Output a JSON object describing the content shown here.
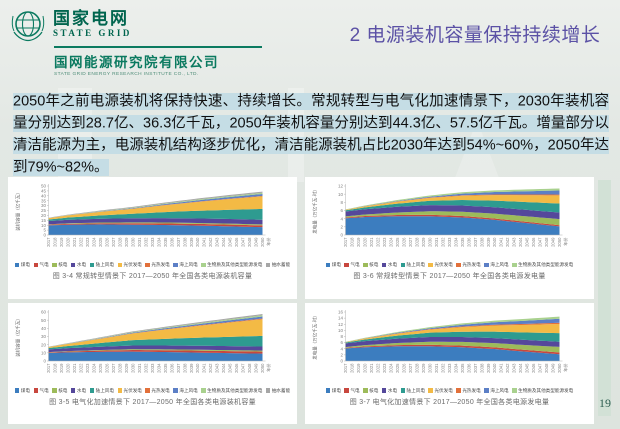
{
  "header": {
    "logo_cn": "国家电网",
    "logo_en": "STATE GRID",
    "org_cn": "国网能源研究院有限公司",
    "org_en": "STATE GRID ENERGY RESEARCH INSTITUTE CO., LTD."
  },
  "slide": {
    "title": "2 电源装机容量保持持续增长",
    "paragraph": "2050年之前电源装机将保持快速、持续增长。常规转型与电气化加速情景下，2030年装机容量分别达到28.7亿、36.3亿千瓦，2050年装机容量分别达到44.3亿、57.5亿千瓦。增量部分以清洁能源为主，电源装机结构逐步优化，清洁能源装机占比2030年达到54%~60%，2050年达到79%~82%。",
    "page_number": "19"
  },
  "colors": {
    "title": "#5b51a5",
    "highlight": "#c5dde5",
    "logo_green": "#0b7a60",
    "coal": "#3c7dbf",
    "gas": "#c8473e",
    "nuclear": "#9dbb5a",
    "hydro": "#55489b",
    "onshore_wind": "#2e9b90",
    "solar_pv": "#f3ba45",
    "solar_thermal": "#e2703a",
    "offshore_wind": "#5c7fc6",
    "biomass_other": "#a9d18e",
    "pumped_storage": "#a6a6a6"
  },
  "chart_data": {
    "type": "area",
    "stacked": true,
    "grid": false,
    "legend_position": "bottom",
    "x_label": "年份",
    "years": [
      2017,
      2018,
      2019,
      2020,
      2021,
      2022,
      2023,
      2024,
      2025,
      2026,
      2027,
      2028,
      2029,
      2030,
      2031,
      2032,
      2033,
      2034,
      2035,
      2036,
      2037,
      2038,
      2039,
      2040,
      2041,
      2042,
      2043,
      2044,
      2045,
      2046,
      2047,
      2048,
      2049,
      2050
    ],
    "sample_years": [
      2017,
      2020,
      2025,
      2030,
      2035,
      2040,
      2045,
      2050
    ],
    "charts": [
      {
        "caption": "图 3-4  常规转型情景下 2017—2050 年全国各类电源装机容量",
        "y_title": "装机容量（亿千瓦）",
        "ylim": [
          0,
          50
        ],
        "ystep": 5,
        "series": [
          {
            "name": "煤电",
            "color": "#3c7dbf",
            "values": [
              9.8,
              10.5,
              10.8,
              10.5,
              10.2,
              9.6,
              8.8,
              8.0
            ]
          },
          {
            "name": "气电",
            "color": "#c8473e",
            "values": [
              0.7,
              0.9,
              1.2,
              1.5,
              1.6,
              1.7,
              1.8,
              1.8
            ]
          },
          {
            "name": "核电",
            "color": "#9dbb5a",
            "values": [
              0.36,
              0.5,
              0.7,
              0.9,
              1.0,
              1.0,
              1.0,
              1.0
            ]
          },
          {
            "name": "水电",
            "color": "#55489b",
            "values": [
              3.4,
              3.6,
              3.9,
              4.2,
              4.4,
              4.6,
              4.7,
              4.8
            ]
          },
          {
            "name": "陆上风电",
            "color": "#2e9b90",
            "values": [
              1.6,
              2.3,
              3.4,
              4.6,
              6.2,
              7.8,
              9.4,
              11.0
            ]
          },
          {
            "name": "光伏发电",
            "color": "#f3ba45",
            "values": [
              1.3,
              2.2,
              3.6,
              5.0,
              7.0,
              9.0,
              11.0,
              12.8
            ]
          },
          {
            "name": "光热发电",
            "color": "#e2703a",
            "values": [
              0.02,
              0.05,
              0.12,
              0.2,
              0.28,
              0.35,
              0.42,
              0.5
            ]
          },
          {
            "name": "海上风电",
            "color": "#5c7fc6",
            "values": [
              0.02,
              0.1,
              0.3,
              0.5,
              0.9,
              1.3,
              1.7,
              2.0
            ]
          },
          {
            "name": "生物质及其他类型能源发电",
            "color": "#a9d18e",
            "values": [
              0.15,
              0.25,
              0.38,
              0.5,
              0.68,
              0.85,
              1.0,
              1.2
            ]
          },
          {
            "name": "抽水蓄能",
            "color": "#a6a6a6",
            "values": [
              0.3,
              0.4,
              0.6,
              0.8,
              0.9,
              1.0,
              1.1,
              1.2
            ]
          }
        ]
      },
      {
        "caption": "图 3-6  常规转型情景下 2017—2050 年全国各类电源发电量",
        "y_title": "发电量（万亿千瓦·时）",
        "ylim": [
          0,
          12
        ],
        "ystep": 2,
        "series": [
          {
            "name": "煤电",
            "color": "#3c7dbf",
            "values": [
              4.1,
              4.4,
              4.6,
              4.6,
              4.3,
              3.7,
              2.9,
              2.1
            ]
          },
          {
            "name": "气电",
            "color": "#c8473e",
            "values": [
              0.2,
              0.25,
              0.3,
              0.35,
              0.35,
              0.33,
              0.31,
              0.3
            ]
          },
          {
            "name": "核电",
            "color": "#9dbb5a",
            "values": [
              0.25,
              0.37,
              0.62,
              0.88,
              1.05,
              1.2,
              1.35,
              1.5
            ]
          },
          {
            "name": "水电",
            "color": "#55489b",
            "values": [
              1.2,
              1.28,
              1.4,
              1.5,
              1.53,
              1.56,
              1.58,
              1.6
            ]
          },
          {
            "name": "陆上风电",
            "color": "#2e9b90",
            "values": [
              0.3,
              0.47,
              0.76,
              1.05,
              1.34,
              1.63,
              1.92,
              2.2
            ]
          },
          {
            "name": "光伏发电",
            "color": "#f3ba45",
            "values": [
              0.12,
              0.25,
              0.48,
              0.7,
              1.03,
              1.35,
              1.68,
              2.0
            ]
          },
          {
            "name": "光热发电",
            "color": "#e2703a",
            "values": [
              0.01,
              0.03,
              0.06,
              0.1,
              0.13,
              0.15,
              0.18,
              0.2
            ]
          },
          {
            "name": "海上风电",
            "color": "#5c7fc6",
            "values": [
              0.01,
              0.05,
              0.12,
              0.2,
              0.4,
              0.6,
              0.8,
              1.0
            ]
          },
          {
            "name": "生物质及其他类型能源发电",
            "color": "#a9d18e",
            "values": [
              0.08,
              0.14,
              0.22,
              0.3,
              0.35,
              0.4,
              0.45,
              0.5
            ]
          }
        ]
      },
      {
        "caption": "图 3-5  电气化加速情景下 2017—2050 年全国各类电源装机容量",
        "y_title": "装机容量（亿千瓦）",
        "ylim": [
          0,
          60
        ],
        "ystep": 10,
        "series": [
          {
            "name": "煤电",
            "color": "#3c7dbf",
            "values": [
              9.8,
              10.6,
              11.2,
              11.5,
              11.0,
              10.3,
              9.6,
              9.0
            ]
          },
          {
            "name": "气电",
            "color": "#c8473e",
            "values": [
              0.7,
              1.0,
              1.5,
              2.0,
              2.2,
              2.4,
              2.5,
              2.5
            ]
          },
          {
            "name": "核电",
            "color": "#9dbb5a",
            "values": [
              0.36,
              0.5,
              0.75,
              1.0,
              1.1,
              1.2,
              1.2,
              1.2
            ]
          },
          {
            "name": "水电",
            "color": "#55489b",
            "values": [
              3.4,
              3.6,
              4.0,
              4.4,
              4.6,
              4.8,
              4.9,
              5.0
            ]
          },
          {
            "name": "陆上风电",
            "color": "#2e9b90",
            "values": [
              1.6,
              2.6,
              4.6,
              6.6,
              8.2,
              9.8,
              11.4,
              13.0
            ]
          },
          {
            "name": "光伏发电",
            "color": "#f3ba45",
            "values": [
              1.3,
              2.6,
              5.2,
              8.2,
              11.3,
              14.4,
              17.5,
              20.5
            ]
          },
          {
            "name": "光热发电",
            "color": "#e2703a",
            "values": [
              0.02,
              0.07,
              0.18,
              0.3,
              0.43,
              0.55,
              0.68,
              0.8
            ]
          },
          {
            "name": "海上风电",
            "color": "#5c7fc6",
            "values": [
              0.02,
              0.15,
              0.45,
              0.8,
              1.2,
              1.6,
              2.1,
              2.5
            ]
          },
          {
            "name": "生物质及其他类型能源发电",
            "color": "#a9d18e",
            "values": [
              0.15,
              0.3,
              0.45,
              0.6,
              0.83,
              1.05,
              1.28,
              1.5
            ]
          },
          {
            "name": "抽水蓄能",
            "color": "#a6a6a6",
            "values": [
              0.3,
              0.45,
              0.68,
              0.9,
              1.05,
              1.2,
              1.35,
              1.5
            ]
          }
        ]
      },
      {
        "caption": "图 3-7  电气化加速情景下 2017—2050 年全国各类电源发电量",
        "y_title": "发电量（万亿千瓦·时）",
        "ylim": [
          0,
          16
        ],
        "ystep": 2,
        "series": [
          {
            "name": "煤电",
            "color": "#3c7dbf",
            "values": [
              4.1,
              4.5,
              4.8,
              4.8,
              4.5,
              3.9,
              3.0,
              2.2
            ]
          },
          {
            "name": "气电",
            "color": "#c8473e",
            "values": [
              0.2,
              0.28,
              0.39,
              0.5,
              0.53,
              0.55,
              0.58,
              0.6
            ]
          },
          {
            "name": "核电",
            "color": "#9dbb5a",
            "values": [
              0.25,
              0.4,
              0.7,
              1.0,
              1.2,
              1.4,
              1.6,
              1.8
            ]
          },
          {
            "name": "水电",
            "color": "#55489b",
            "values": [
              1.2,
              1.3,
              1.42,
              1.55,
              1.59,
              1.63,
              1.67,
              1.7
            ]
          },
          {
            "name": "陆上风电",
            "color": "#2e9b90",
            "values": [
              0.3,
              0.55,
              0.98,
              1.4,
              1.75,
              2.1,
              2.45,
              2.8
            ]
          },
          {
            "name": "光伏发电",
            "color": "#f3ba45",
            "values": [
              0.12,
              0.3,
              0.65,
              1.0,
              1.5,
              2.0,
              2.5,
              3.0
            ]
          },
          {
            "name": "光热发电",
            "color": "#e2703a",
            "values": [
              0.01,
              0.04,
              0.1,
              0.15,
              0.21,
              0.27,
              0.34,
              0.4
            ]
          },
          {
            "name": "海上风电",
            "color": "#5c7fc6",
            "values": [
              0.01,
              0.07,
              0.18,
              0.3,
              0.55,
              0.8,
              1.05,
              1.3
            ]
          },
          {
            "name": "生物质及其他类型能源发电",
            "color": "#a9d18e",
            "values": [
              0.08,
              0.15,
              0.25,
              0.35,
              0.44,
              0.53,
              0.61,
              0.7
            ]
          }
        ]
      }
    ]
  }
}
